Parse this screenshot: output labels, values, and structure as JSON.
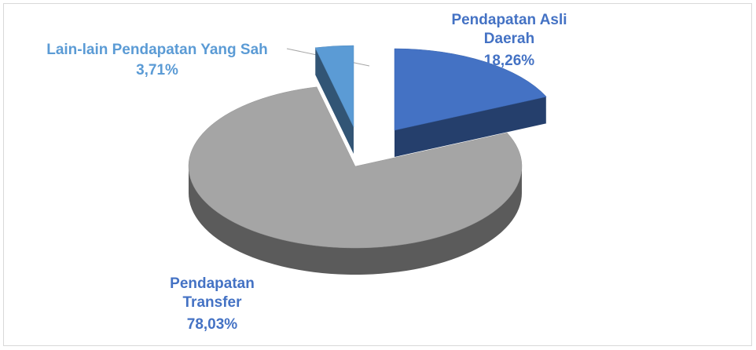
{
  "chart_data": {
    "type": "pie3d",
    "categories": [
      "Pendapatan Asli Daerah",
      "Pendapatan Transfer",
      "Lain-lain Pendapatan Yang Sah"
    ],
    "values": [
      18.26,
      78.03,
      3.71
    ],
    "value_labels": [
      "18,26%",
      "78,03%",
      "3,71%"
    ],
    "colors": [
      "#4472c4",
      "#a5a5a5",
      "#5b9bd5"
    ],
    "label_colors": [
      "#4472c4",
      "#4472c4",
      "#5b9bd5"
    ]
  }
}
